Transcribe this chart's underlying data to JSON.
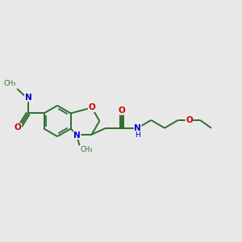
{
  "bg_color": "#e8e8e8",
  "bond_color": "#2d6e2d",
  "N_color": "#0000cc",
  "O_color": "#cc0000",
  "bond_width": 1.4,
  "font_size": 7.5,
  "fig_w": 3.0,
  "fig_h": 3.0,
  "dpi": 100,
  "xlim": [
    0,
    3.0
  ],
  "ylim": [
    0.8,
    2.2
  ]
}
